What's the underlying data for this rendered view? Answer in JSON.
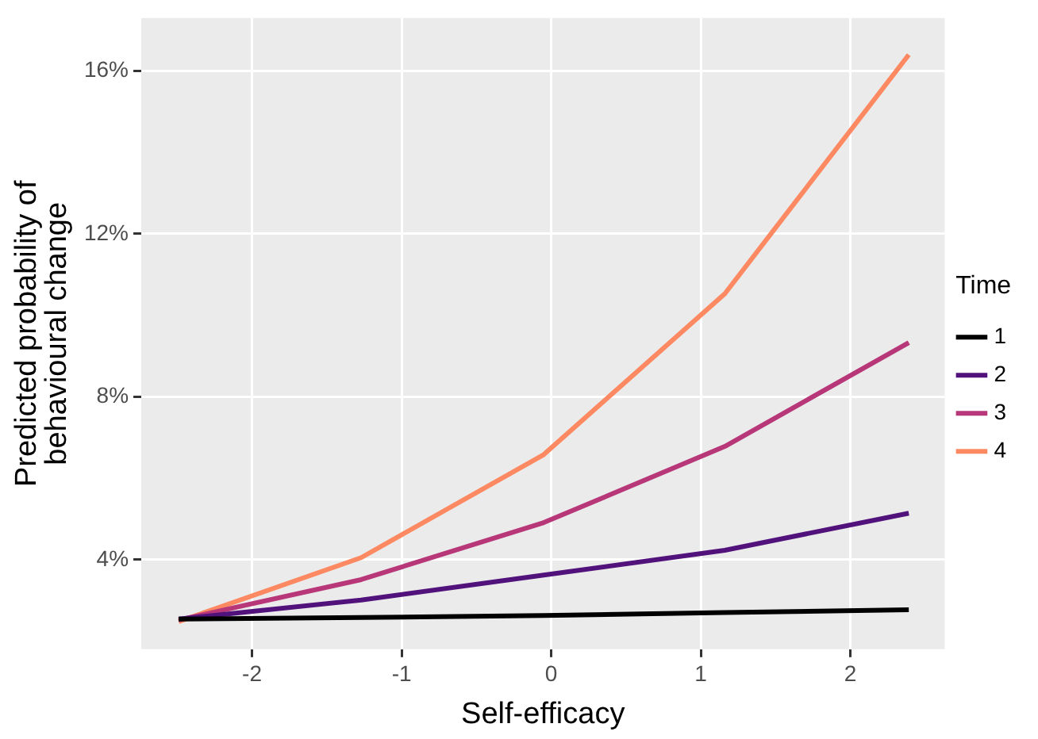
{
  "chart_data": {
    "type": "line",
    "xlabel": "Self-efficacy",
    "ylabel": "Predicted probability of\nbehavioural change",
    "legend_title": "Time",
    "legend": "right",
    "grid": true,
    "line_style": "solid",
    "marker": "none",
    "x": [
      -2.49,
      -1.27,
      -0.05,
      1.16,
      2.39
    ],
    "xlim": [
      -2.74,
      2.63
    ],
    "xticks": [
      -2,
      -1,
      0,
      1,
      2
    ],
    "ylim": [
      1.8,
      17.3
    ],
    "yticks": [
      {
        "value": 4,
        "label": "4%"
      },
      {
        "value": 8,
        "label": "8%"
      },
      {
        "value": 12,
        "label": "12%"
      },
      {
        "value": 16,
        "label": "16%"
      }
    ],
    "series": [
      {
        "name": "1",
        "color": "#000000",
        "values": [
          2.54,
          2.58,
          2.63,
          2.7,
          2.77
        ]
      },
      {
        "name": "2",
        "color": "#51127c",
        "values": [
          2.54,
          3.01,
          3.62,
          4.23,
          5.14
        ]
      },
      {
        "name": "3",
        "color": "#b73779",
        "values": [
          2.52,
          3.51,
          4.91,
          6.78,
          9.33
        ]
      },
      {
        "name": "4",
        "color": "#fc8961",
        "values": [
          2.48,
          4.05,
          6.58,
          10.53,
          16.4
        ]
      }
    ]
  }
}
